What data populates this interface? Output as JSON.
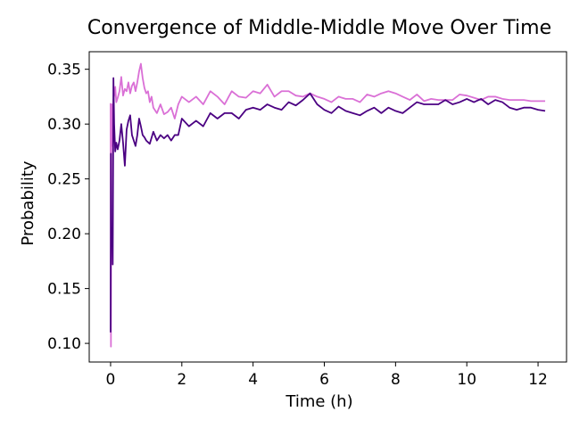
{
  "chart_data": {
    "type": "line",
    "title": "Convergence of Middle-Middle Move Over Time",
    "xlabel": "Time (h)",
    "ylabel": "Probability",
    "xlim": [
      -0.6,
      12.8
    ],
    "ylim": [
      0.083,
      0.366
    ],
    "xticks": [
      0,
      2,
      4,
      6,
      8,
      10,
      12
    ],
    "yticks": [
      0.1,
      0.15,
      0.2,
      0.25,
      0.3,
      0.35
    ],
    "xtick_labels": [
      "0",
      "2",
      "4",
      "6",
      "8",
      "10",
      "12"
    ],
    "ytick_labels": [
      "0.10",
      "0.15",
      "0.20",
      "0.25",
      "0.30",
      "0.35"
    ],
    "grid": false,
    "legend": "none",
    "series": [
      {
        "color": "#da70d6",
        "points": [
          [
            0.0,
            0.319
          ],
          [
            0.01,
            0.097
          ],
          [
            0.02,
            0.273
          ],
          [
            0.04,
            0.318
          ],
          [
            0.06,
            0.28
          ],
          [
            0.08,
            0.322
          ],
          [
            0.1,
            0.326
          ],
          [
            0.13,
            0.334
          ],
          [
            0.16,
            0.32
          ],
          [
            0.2,
            0.324
          ],
          [
            0.25,
            0.33
          ],
          [
            0.3,
            0.343
          ],
          [
            0.35,
            0.326
          ],
          [
            0.4,
            0.332
          ],
          [
            0.45,
            0.33
          ],
          [
            0.5,
            0.338
          ],
          [
            0.55,
            0.328
          ],
          [
            0.6,
            0.335
          ],
          [
            0.65,
            0.338
          ],
          [
            0.7,
            0.33
          ],
          [
            0.75,
            0.338
          ],
          [
            0.8,
            0.348
          ],
          [
            0.85,
            0.355
          ],
          [
            0.9,
            0.342
          ],
          [
            0.95,
            0.333
          ],
          [
            1.0,
            0.328
          ],
          [
            1.05,
            0.33
          ],
          [
            1.1,
            0.32
          ],
          [
            1.15,
            0.325
          ],
          [
            1.2,
            0.315
          ],
          [
            1.3,
            0.31
          ],
          [
            1.4,
            0.318
          ],
          [
            1.5,
            0.309
          ],
          [
            1.6,
            0.311
          ],
          [
            1.7,
            0.315
          ],
          [
            1.8,
            0.305
          ],
          [
            1.9,
            0.318
          ],
          [
            2.0,
            0.325
          ],
          [
            2.2,
            0.32
          ],
          [
            2.4,
            0.325
          ],
          [
            2.6,
            0.318
          ],
          [
            2.8,
            0.33
          ],
          [
            3.0,
            0.325
          ],
          [
            3.2,
            0.318
          ],
          [
            3.4,
            0.33
          ],
          [
            3.6,
            0.325
          ],
          [
            3.8,
            0.324
          ],
          [
            4.0,
            0.33
          ],
          [
            4.2,
            0.328
          ],
          [
            4.4,
            0.336
          ],
          [
            4.6,
            0.325
          ],
          [
            4.8,
            0.33
          ],
          [
            5.0,
            0.33
          ],
          [
            5.2,
            0.326
          ],
          [
            5.4,
            0.325
          ],
          [
            5.6,
            0.328
          ],
          [
            5.8,
            0.325
          ],
          [
            6.0,
            0.323
          ],
          [
            6.2,
            0.32
          ],
          [
            6.4,
            0.325
          ],
          [
            6.6,
            0.323
          ],
          [
            6.8,
            0.323
          ],
          [
            7.0,
            0.32
          ],
          [
            7.2,
            0.327
          ],
          [
            7.4,
            0.325
          ],
          [
            7.6,
            0.328
          ],
          [
            7.8,
            0.33
          ],
          [
            8.0,
            0.328
          ],
          [
            8.2,
            0.325
          ],
          [
            8.4,
            0.322
          ],
          [
            8.6,
            0.327
          ],
          [
            8.8,
            0.321
          ],
          [
            9.0,
            0.323
          ],
          [
            9.2,
            0.322
          ],
          [
            9.4,
            0.322
          ],
          [
            9.6,
            0.322
          ],
          [
            9.8,
            0.327
          ],
          [
            10.0,
            0.326
          ],
          [
            10.2,
            0.324
          ],
          [
            10.4,
            0.322
          ],
          [
            10.6,
            0.325
          ],
          [
            10.8,
            0.325
          ],
          [
            11.0,
            0.323
          ],
          [
            11.2,
            0.322
          ],
          [
            11.4,
            0.322
          ],
          [
            11.6,
            0.322
          ],
          [
            11.8,
            0.321
          ],
          [
            12.0,
            0.321
          ],
          [
            12.2,
            0.321
          ]
        ]
      },
      {
        "color": "#4b0082",
        "points": [
          [
            0.0,
            0.11
          ],
          [
            0.01,
            0.273
          ],
          [
            0.02,
            0.19
          ],
          [
            0.04,
            0.205
          ],
          [
            0.06,
            0.172
          ],
          [
            0.08,
            0.342
          ],
          [
            0.1,
            0.3
          ],
          [
            0.13,
            0.275
          ],
          [
            0.16,
            0.283
          ],
          [
            0.2,
            0.277
          ],
          [
            0.25,
            0.285
          ],
          [
            0.3,
            0.3
          ],
          [
            0.35,
            0.283
          ],
          [
            0.4,
            0.262
          ],
          [
            0.45,
            0.295
          ],
          [
            0.5,
            0.303
          ],
          [
            0.55,
            0.308
          ],
          [
            0.6,
            0.29
          ],
          [
            0.65,
            0.285
          ],
          [
            0.7,
            0.28
          ],
          [
            0.75,
            0.29
          ],
          [
            0.8,
            0.305
          ],
          [
            0.85,
            0.298
          ],
          [
            0.9,
            0.29
          ],
          [
            0.95,
            0.288
          ],
          [
            1.0,
            0.285
          ],
          [
            1.1,
            0.282
          ],
          [
            1.2,
            0.293
          ],
          [
            1.3,
            0.285
          ],
          [
            1.4,
            0.29
          ],
          [
            1.5,
            0.287
          ],
          [
            1.6,
            0.29
          ],
          [
            1.7,
            0.285
          ],
          [
            1.8,
            0.29
          ],
          [
            1.9,
            0.29
          ],
          [
            2.0,
            0.305
          ],
          [
            2.2,
            0.298
          ],
          [
            2.4,
            0.303
          ],
          [
            2.6,
            0.298
          ],
          [
            2.8,
            0.31
          ],
          [
            3.0,
            0.305
          ],
          [
            3.2,
            0.31
          ],
          [
            3.4,
            0.31
          ],
          [
            3.6,
            0.305
          ],
          [
            3.8,
            0.313
          ],
          [
            4.0,
            0.315
          ],
          [
            4.2,
            0.313
          ],
          [
            4.4,
            0.318
          ],
          [
            4.6,
            0.315
          ],
          [
            4.8,
            0.313
          ],
          [
            5.0,
            0.32
          ],
          [
            5.2,
            0.317
          ],
          [
            5.4,
            0.322
          ],
          [
            5.6,
            0.328
          ],
          [
            5.8,
            0.318
          ],
          [
            6.0,
            0.313
          ],
          [
            6.2,
            0.31
          ],
          [
            6.4,
            0.316
          ],
          [
            6.6,
            0.312
          ],
          [
            6.8,
            0.31
          ],
          [
            7.0,
            0.308
          ],
          [
            7.2,
            0.312
          ],
          [
            7.4,
            0.315
          ],
          [
            7.6,
            0.31
          ],
          [
            7.8,
            0.315
          ],
          [
            8.0,
            0.312
          ],
          [
            8.2,
            0.31
          ],
          [
            8.4,
            0.315
          ],
          [
            8.6,
            0.32
          ],
          [
            8.8,
            0.318
          ],
          [
            9.0,
            0.318
          ],
          [
            9.2,
            0.318
          ],
          [
            9.4,
            0.322
          ],
          [
            9.6,
            0.318
          ],
          [
            9.8,
            0.32
          ],
          [
            10.0,
            0.323
          ],
          [
            10.2,
            0.32
          ],
          [
            10.4,
            0.323
          ],
          [
            10.6,
            0.318
          ],
          [
            10.8,
            0.322
          ],
          [
            11.0,
            0.32
          ],
          [
            11.2,
            0.315
          ],
          [
            11.4,
            0.313
          ],
          [
            11.6,
            0.315
          ],
          [
            11.8,
            0.315
          ],
          [
            12.0,
            0.313
          ],
          [
            12.2,
            0.312
          ]
        ]
      }
    ]
  }
}
